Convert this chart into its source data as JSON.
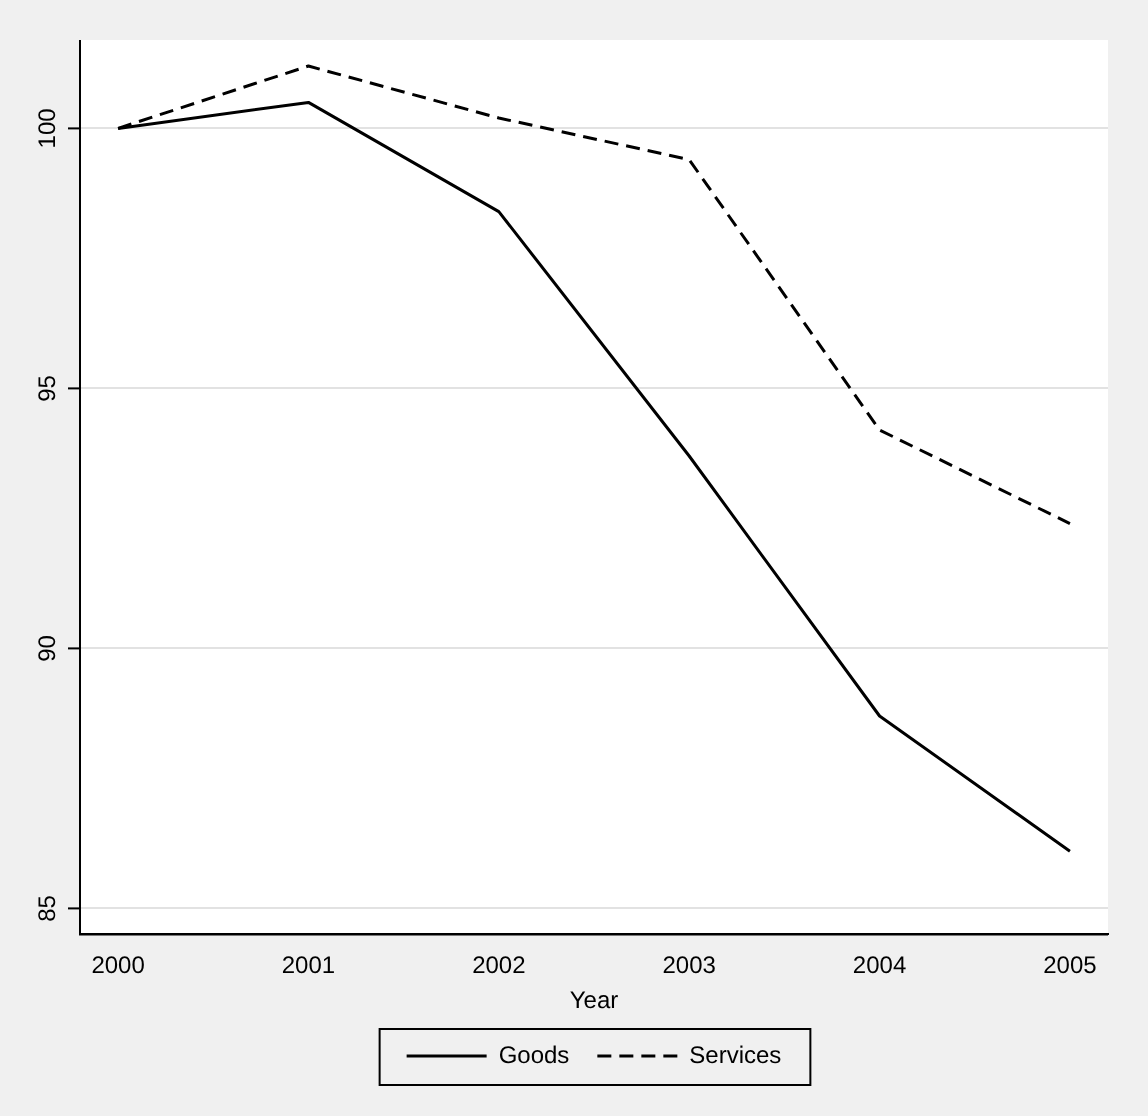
{
  "chart_data": {
    "type": "line",
    "xlabel": "Year",
    "x": [
      2000,
      2001,
      2002,
      2003,
      2004,
      2005
    ],
    "series": [
      {
        "name": "Goods",
        "color": "#000000",
        "line_style": "solid",
        "values": [
          100,
          100.5,
          98.4,
          93.7,
          88.7,
          86.1
        ]
      },
      {
        "name": "Services",
        "color": "#000000",
        "line_style": "dashed",
        "values": [
          100,
          101.2,
          100.2,
          99.4,
          94.2,
          92.4
        ]
      }
    ],
    "xlim": [
      1999.8,
      2005.2
    ],
    "xticks": [
      2000,
      2001,
      2002,
      2003,
      2004,
      2005
    ],
    "ylim": [
      84.5,
      101.7
    ],
    "yticks": [
      85,
      90,
      95,
      100
    ],
    "grid": "y",
    "legend": "bottom",
    "marker": "none"
  }
}
